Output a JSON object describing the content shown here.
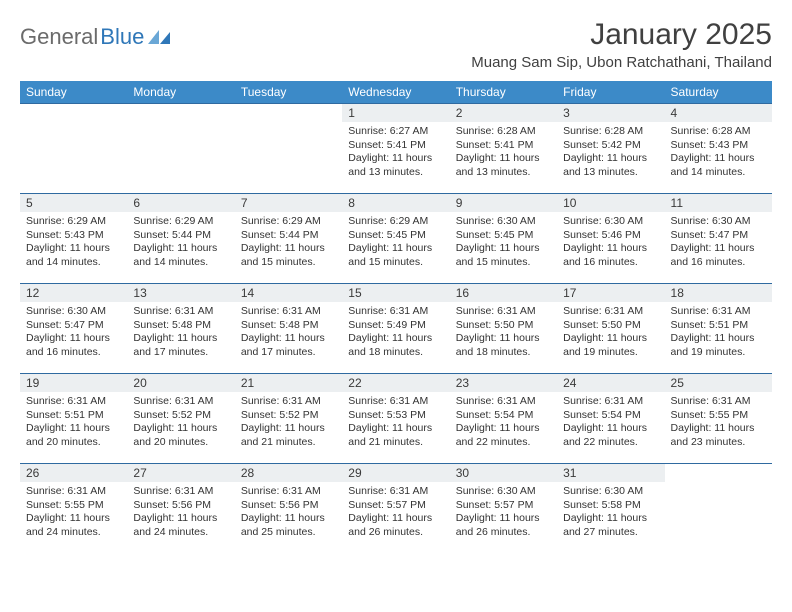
{
  "logo": {
    "word1": "General",
    "word2": "Blue"
  },
  "title": "January 2025",
  "location": "Muang Sam Sip, Ubon Ratchathani, Thailand",
  "colors": {
    "header_bg": "#3c8ac8",
    "header_text": "#ffffff",
    "daynum_bg": "#eceff1",
    "rule": "#2f6aa0",
    "title_color": "#404040",
    "logo_gray": "#6b6b6b",
    "logo_blue": "#2f77b8"
  },
  "day_names": [
    "Sunday",
    "Monday",
    "Tuesday",
    "Wednesday",
    "Thursday",
    "Friday",
    "Saturday"
  ],
  "weeks": [
    [
      {
        "n": "",
        "empty": true
      },
      {
        "n": "",
        "empty": true
      },
      {
        "n": "",
        "empty": true
      },
      {
        "n": "1",
        "sr": "6:27 AM",
        "ss": "5:41 PM",
        "dl": "11 hours and 13 minutes."
      },
      {
        "n": "2",
        "sr": "6:28 AM",
        "ss": "5:41 PM",
        "dl": "11 hours and 13 minutes."
      },
      {
        "n": "3",
        "sr": "6:28 AM",
        "ss": "5:42 PM",
        "dl": "11 hours and 13 minutes."
      },
      {
        "n": "4",
        "sr": "6:28 AM",
        "ss": "5:43 PM",
        "dl": "11 hours and 14 minutes."
      }
    ],
    [
      {
        "n": "5",
        "sr": "6:29 AM",
        "ss": "5:43 PM",
        "dl": "11 hours and 14 minutes."
      },
      {
        "n": "6",
        "sr": "6:29 AM",
        "ss": "5:44 PM",
        "dl": "11 hours and 14 minutes."
      },
      {
        "n": "7",
        "sr": "6:29 AM",
        "ss": "5:44 PM",
        "dl": "11 hours and 15 minutes."
      },
      {
        "n": "8",
        "sr": "6:29 AM",
        "ss": "5:45 PM",
        "dl": "11 hours and 15 minutes."
      },
      {
        "n": "9",
        "sr": "6:30 AM",
        "ss": "5:45 PM",
        "dl": "11 hours and 15 minutes."
      },
      {
        "n": "10",
        "sr": "6:30 AM",
        "ss": "5:46 PM",
        "dl": "11 hours and 16 minutes."
      },
      {
        "n": "11",
        "sr": "6:30 AM",
        "ss": "5:47 PM",
        "dl": "11 hours and 16 minutes."
      }
    ],
    [
      {
        "n": "12",
        "sr": "6:30 AM",
        "ss": "5:47 PM",
        "dl": "11 hours and 16 minutes."
      },
      {
        "n": "13",
        "sr": "6:31 AM",
        "ss": "5:48 PM",
        "dl": "11 hours and 17 minutes."
      },
      {
        "n": "14",
        "sr": "6:31 AM",
        "ss": "5:48 PM",
        "dl": "11 hours and 17 minutes."
      },
      {
        "n": "15",
        "sr": "6:31 AM",
        "ss": "5:49 PM",
        "dl": "11 hours and 18 minutes."
      },
      {
        "n": "16",
        "sr": "6:31 AM",
        "ss": "5:50 PM",
        "dl": "11 hours and 18 minutes."
      },
      {
        "n": "17",
        "sr": "6:31 AM",
        "ss": "5:50 PM",
        "dl": "11 hours and 19 minutes."
      },
      {
        "n": "18",
        "sr": "6:31 AM",
        "ss": "5:51 PM",
        "dl": "11 hours and 19 minutes."
      }
    ],
    [
      {
        "n": "19",
        "sr": "6:31 AM",
        "ss": "5:51 PM",
        "dl": "11 hours and 20 minutes."
      },
      {
        "n": "20",
        "sr": "6:31 AM",
        "ss": "5:52 PM",
        "dl": "11 hours and 20 minutes."
      },
      {
        "n": "21",
        "sr": "6:31 AM",
        "ss": "5:52 PM",
        "dl": "11 hours and 21 minutes."
      },
      {
        "n": "22",
        "sr": "6:31 AM",
        "ss": "5:53 PM",
        "dl": "11 hours and 21 minutes."
      },
      {
        "n": "23",
        "sr": "6:31 AM",
        "ss": "5:54 PM",
        "dl": "11 hours and 22 minutes."
      },
      {
        "n": "24",
        "sr": "6:31 AM",
        "ss": "5:54 PM",
        "dl": "11 hours and 22 minutes."
      },
      {
        "n": "25",
        "sr": "6:31 AM",
        "ss": "5:55 PM",
        "dl": "11 hours and 23 minutes."
      }
    ],
    [
      {
        "n": "26",
        "sr": "6:31 AM",
        "ss": "5:55 PM",
        "dl": "11 hours and 24 minutes."
      },
      {
        "n": "27",
        "sr": "6:31 AM",
        "ss": "5:56 PM",
        "dl": "11 hours and 24 minutes."
      },
      {
        "n": "28",
        "sr": "6:31 AM",
        "ss": "5:56 PM",
        "dl": "11 hours and 25 minutes."
      },
      {
        "n": "29",
        "sr": "6:31 AM",
        "ss": "5:57 PM",
        "dl": "11 hours and 26 minutes."
      },
      {
        "n": "30",
        "sr": "6:30 AM",
        "ss": "5:57 PM",
        "dl": "11 hours and 26 minutes."
      },
      {
        "n": "31",
        "sr": "6:30 AM",
        "ss": "5:58 PM",
        "dl": "11 hours and 27 minutes."
      },
      {
        "n": "",
        "empty": true
      }
    ]
  ],
  "labels": {
    "sunrise": "Sunrise:",
    "sunset": "Sunset:",
    "daylight": "Daylight:"
  }
}
